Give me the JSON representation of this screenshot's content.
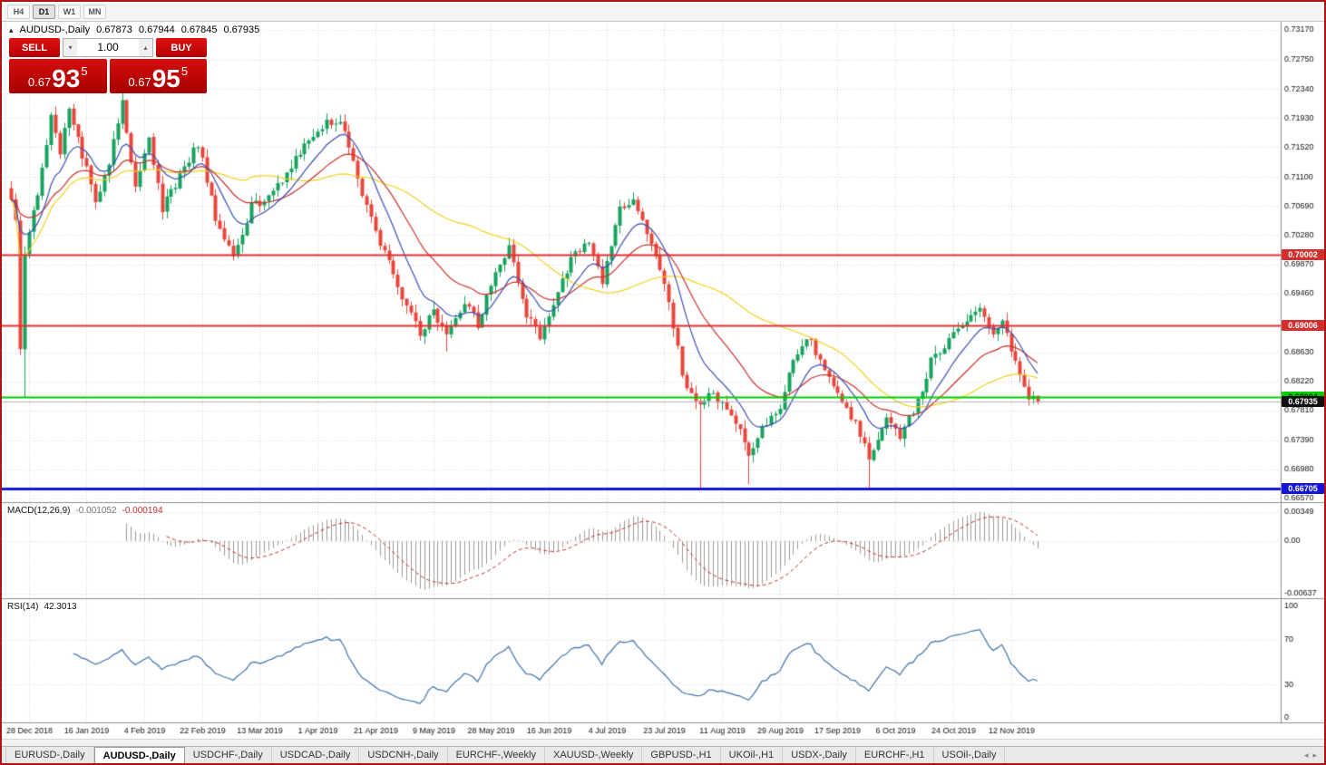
{
  "window": {
    "border_color": "#b01212"
  },
  "toolbar": {
    "buttons": [
      {
        "label": "H4",
        "active": false
      },
      {
        "label": "D1",
        "active": true
      },
      {
        "label": "W1",
        "active": false
      },
      {
        "label": "MN",
        "active": false
      }
    ]
  },
  "chart_header": {
    "icon": "▴",
    "symbol": "AUDUSD-,Daily",
    "open": "0.67873",
    "high": "0.67944",
    "low": "0.67845",
    "close": "0.67935"
  },
  "trade_panel": {
    "sell_label": "SELL",
    "buy_label": "BUY",
    "volume": "1.00",
    "down_arrow": "▾",
    "up_arrow": "▴",
    "sell_price": {
      "prefix": "0.67",
      "big": "93",
      "sup": "5"
    },
    "buy_price": {
      "prefix": "0.67",
      "big": "95",
      "sup": "5"
    }
  },
  "chart_data": {
    "type": "candlestick",
    "title": "AUDUSD-,Daily",
    "bull_color": "#17a25e",
    "bear_color": "#e8463c",
    "grid_color": "#d6d6d6",
    "ma_colors": {
      "fast": "#3b4fb4",
      "medium": "#c8322d",
      "slow": "#f2d21f"
    },
    "price_axis": {
      "tick_labels": [
        "0.73170",
        "0.72750",
        "0.72340",
        "0.71930",
        "0.71520",
        "0.71100",
        "0.70690",
        "0.70280",
        "0.69870",
        "0.69460",
        "0.68630",
        "0.68220",
        "0.67810",
        "0.67390",
        "0.66980",
        "0.66570"
      ],
      "tick_values": [
        0.7317,
        0.7275,
        0.7234,
        0.7193,
        0.7152,
        0.711,
        0.7069,
        0.7028,
        0.6987,
        0.6946,
        0.6863,
        0.6822,
        0.6781,
        0.6739,
        0.6698,
        0.6657
      ]
    },
    "x_axis": {
      "labels": [
        "28 Dec 2018",
        "16 Jan 2019",
        "4 Feb 2019",
        "22 Feb 2019",
        "13 Mar 2019",
        "1 Apr 2019",
        "21 Apr 2019",
        "9 May 2019",
        "28 May 2019",
        "16 Jun 2019",
        "4 Jul 2019",
        "23 Jul 2019",
        "11 Aug 2019",
        "29 Aug 2019",
        "17 Sep 2019",
        "6 Oct 2019",
        "24 Oct 2019",
        "12 Nov 2019"
      ],
      "first_label_index": 4,
      "label_step": 13
    },
    "candles": {
      "count": 232,
      "seed": 9,
      "anchors": [
        [
          0,
          0.7082
        ],
        [
          1,
          0.7045
        ],
        [
          2,
          0.6862
        ],
        [
          3,
          0.7
        ],
        [
          5,
          0.7058
        ],
        [
          7,
          0.7118
        ],
        [
          9,
          0.7203
        ],
        [
          11,
          0.7146
        ],
        [
          13,
          0.7204
        ],
        [
          15,
          0.716
        ],
        [
          17,
          0.7122
        ],
        [
          19,
          0.7072
        ],
        [
          22,
          0.713
        ],
        [
          25,
          0.7222
        ],
        [
          28,
          0.7092
        ],
        [
          31,
          0.716
        ],
        [
          34,
          0.7066
        ],
        [
          38,
          0.711
        ],
        [
          42,
          0.7158
        ],
        [
          46,
          0.7052
        ],
        [
          50,
          0.6996
        ],
        [
          54,
          0.7068
        ],
        [
          58,
          0.7082
        ],
        [
          62,
          0.7114
        ],
        [
          66,
          0.7154
        ],
        [
          71,
          0.719
        ],
        [
          75,
          0.7178
        ],
        [
          79,
          0.7086
        ],
        [
          84,
          0.7002
        ],
        [
          88,
          0.694
        ],
        [
          92,
          0.6892
        ],
        [
          95,
          0.692
        ],
        [
          98,
          0.6882
        ],
        [
          102,
          0.6934
        ],
        [
          105,
          0.6902
        ],
        [
          109,
          0.6978
        ],
        [
          112,
          0.7012
        ],
        [
          116,
          0.6916
        ],
        [
          119,
          0.6886
        ],
        [
          122,
          0.6934
        ],
        [
          126,
          0.6994
        ],
        [
          130,
          0.7022
        ],
        [
          133,
          0.6962
        ],
        [
          137,
          0.7062
        ],
        [
          140,
          0.7082
        ],
        [
          144,
          0.7012
        ],
        [
          148,
          0.6936
        ],
        [
          151,
          0.6832
        ],
        [
          154,
          0.6792
        ],
        [
          157,
          0.6802
        ],
        [
          160,
          0.6796
        ],
        [
          164,
          0.6752
        ],
        [
          166,
          0.672
        ],
        [
          169,
          0.6758
        ],
        [
          173,
          0.6788
        ],
        [
          176,
          0.6858
        ],
        [
          180,
          0.6882
        ],
        [
          183,
          0.6832
        ],
        [
          187,
          0.6792
        ],
        [
          190,
          0.6762
        ],
        [
          193,
          0.6714
        ],
        [
          197,
          0.6768
        ],
        [
          200,
          0.6744
        ],
        [
          204,
          0.6792
        ],
        [
          207,
          0.685
        ],
        [
          211,
          0.688
        ],
        [
          214,
          0.6906
        ],
        [
          218,
          0.6922
        ],
        [
          221,
          0.6884
        ],
        [
          223,
          0.6902
        ],
        [
          226,
          0.6852
        ],
        [
          229,
          0.6802
        ],
        [
          231,
          0.67935
        ]
      ],
      "wick_overrides": [
        {
          "i": 3,
          "low": 0.6799
        },
        {
          "i": 98,
          "low": 0.6864
        },
        {
          "i": 155,
          "low": 0.667
        },
        {
          "i": 166,
          "low": 0.6677
        },
        {
          "i": 193,
          "low": 0.6669
        },
        {
          "i": 218,
          "high": 0.6932
        }
      ],
      "last_close": 0.67935
    },
    "moving_averages": [
      {
        "type": "ema",
        "period": 10,
        "color_key": "fast"
      },
      {
        "type": "ema",
        "period": 24,
        "color_key": "medium"
      },
      {
        "type": "sma",
        "period": 52,
        "color_key": "slow"
      }
    ],
    "levels": [
      {
        "label": "0.70002",
        "value": 0.70002,
        "line": "#e03131",
        "width": 2,
        "box_bg": "#d42f2f",
        "box_fg": "#ffffff"
      },
      {
        "label": "0.69006",
        "value": 0.69006,
        "line": "#e03131",
        "width": 2,
        "box_bg": "#d42f2f",
        "box_fg": "#ffffff"
      },
      {
        "label": "0.68004",
        "value": 0.68004,
        "line": "#00ce00",
        "width": 2,
        "box_bg": "#00ce00",
        "box_fg": "#0c2a00"
      },
      {
        "label": "0.66705",
        "value": 0.66705,
        "line": "#1414dc",
        "width": 3,
        "box_bg": "#1414dc",
        "box_fg": "#ffffff"
      }
    ],
    "current_price": {
      "label": "0.67935",
      "value": 0.67935,
      "line": "#b4b4b4",
      "box_bg": "#101010",
      "box_fg": "#ffffff"
    },
    "macd": {
      "name": "MACD(12,26,9)",
      "value_main": "-0.001052",
      "value_signal": "-0.000194",
      "fast": 12,
      "slow": 26,
      "signal": 9,
      "axis": [
        {
          "label": "0.00349",
          "value": 0.00349
        },
        {
          "label": "0.00",
          "value": 0
        },
        {
          "label": "-0.00637",
          "value": -0.00637
        }
      ],
      "hist_color": "#9b9b9b",
      "signal_color": "#c22f2f"
    },
    "rsi": {
      "name": "RSI(14)",
      "value": "42.3013",
      "period": 14,
      "line_color": "#3e72ab",
      "axis": [
        {
          "label": "100",
          "value": 100
        },
        {
          "label": "70",
          "value": 70
        },
        {
          "label": "30",
          "value": 30
        },
        {
          "label": "0",
          "value": 0
        }
      ],
      "guide_levels": [
        70,
        30
      ]
    }
  },
  "tabs": {
    "active_index": 1,
    "items": [
      "EURUSD-,Daily",
      "AUDUSD-,Daily",
      "USDCHF-,Daily",
      "USDCAD-,Daily",
      "USDCNH-,Daily",
      "EURCHF-,Weekly",
      "XAUUSD-,Weekly",
      "GBPUSD-,H1",
      "UKOil-,H1",
      "USDX-,Daily",
      "EURCHF-,H1",
      "USOil-,Daily"
    ],
    "scroll_left": "◂",
    "scroll_right": "▸"
  }
}
